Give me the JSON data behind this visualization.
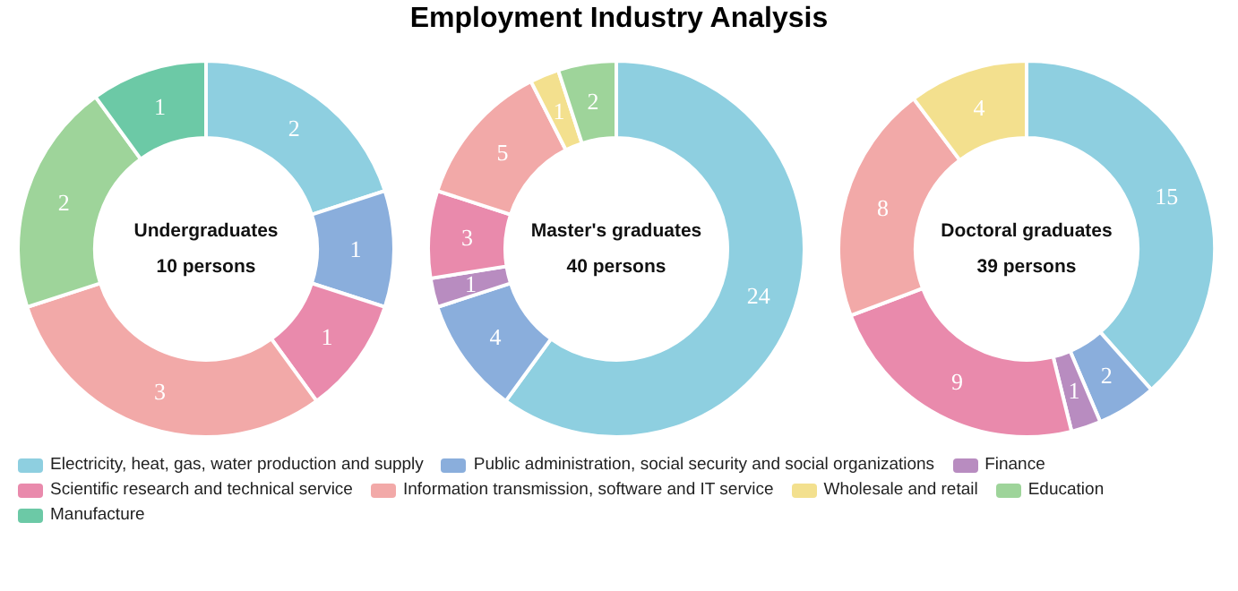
{
  "chart_data": [
    {
      "type": "donut",
      "annotations": [
        "Undergraduates",
        "10 persons"
      ],
      "categories": [
        null,
        null,
        null,
        null,
        null,
        null,
        null,
        null
      ],
      "values": [
        2,
        1,
        null,
        1,
        3,
        null,
        2,
        1
      ],
      "colors": [
        "#8ecfe0",
        "#8aaedc",
        "#b88cc0",
        "#e98aac",
        "#f2a9a8",
        "#f3e08e",
        "#9ed49a",
        "#6cc9a6"
      ],
      "data_labels": true
    },
    {
      "type": "donut",
      "title": "Employment Industry Analysis",
      "annotations": [
        "Master's graduates",
        "40 persons"
      ],
      "categories": [
        "Electricity, heat, gas, water production and supply",
        "Public administration, social security and social organizations",
        "Finance",
        "Scientific research and technical service",
        "Information transmission, software and IT service",
        "Wholesale and retail",
        "Education",
        "Manufacture"
      ],
      "values": [
        24,
        4,
        1,
        3,
        5,
        1,
        2,
        null
      ],
      "colors": [
        "#8ecfe0",
        "#8aaedc",
        "#b88cc0",
        "#e98aac",
        "#f2a9a8",
        "#f3e08e",
        "#9ed49a",
        "#6cc9a6"
      ],
      "data_labels": true,
      "legend": "bottom"
    },
    {
      "type": "donut",
      "annotations": [
        "Doctoral graduates",
        "39 persons"
      ],
      "categories": [
        null,
        null,
        null,
        null,
        null,
        null,
        null,
        null
      ],
      "values": [
        15,
        2,
        1,
        9,
        8,
        4,
        null,
        null
      ],
      "colors": [
        "#8ecfe0",
        "#8aaedc",
        "#b88cc0",
        "#e98aac",
        "#f2a9a8",
        "#f3e08e",
        "#9ed49a",
        "#6cc9a6"
      ],
      "data_labels": true
    }
  ]
}
